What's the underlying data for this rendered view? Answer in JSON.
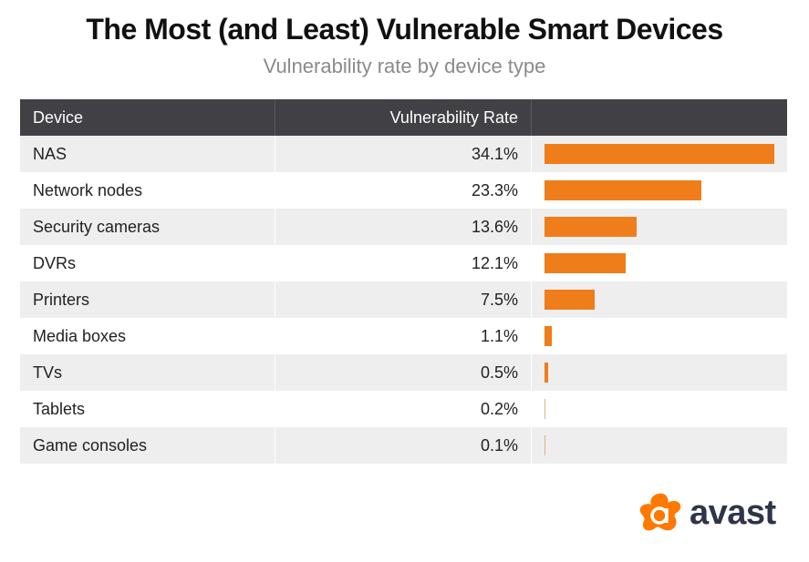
{
  "chart_data": {
    "type": "table",
    "title": "The Most (and Least) Vulnerable Smart Devices",
    "subtitle": "Vulnerability rate by device type",
    "columns": [
      "Device",
      "Vulnerability Rate",
      ""
    ],
    "categories": [
      "NAS",
      "Network nodes",
      "Security cameras",
      "DVRs",
      "Printers",
      "Media boxes",
      "TVs",
      "Tablets",
      "Game consoles"
    ],
    "values": [
      34.1,
      23.3,
      13.6,
      12.1,
      7.5,
      1.1,
      0.5,
      0.2,
      0.1
    ],
    "labels": [
      "34.1%",
      "23.3%",
      "13.6%",
      "12.1%",
      "7.5%",
      "1.1%",
      "0.5%",
      "0.2%",
      "0.1%"
    ],
    "bar_color": "#ef7d1a",
    "header_color": "#414145"
  },
  "logo": {
    "text": "avast",
    "color": "#ff7800"
  }
}
